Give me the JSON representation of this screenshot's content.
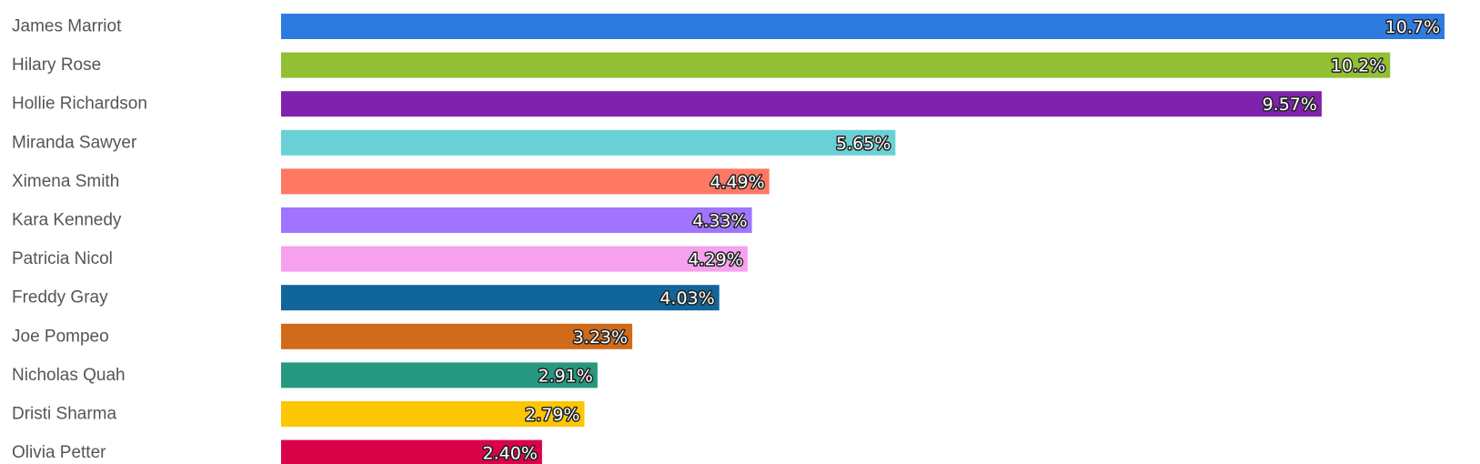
{
  "chart_data": {
    "type": "bar",
    "orientation": "horizontal",
    "title": "",
    "xlabel": "",
    "ylabel": "",
    "unit": "%",
    "xlim": [
      0,
      10.7
    ],
    "grid": false,
    "legend": "none",
    "categories": [
      "James Marriot",
      "Hilary Rose",
      "Hollie Richardson",
      "Miranda Sawyer",
      "Ximena Smith",
      "Kara Kennedy",
      "Patricia Nicol",
      "Freddy Gray",
      "Joe Pompeo",
      "Nicholas Quah",
      "Dristi Sharma",
      "Olivia Petter"
    ],
    "values": [
      10.7,
      10.2,
      9.57,
      5.65,
      4.49,
      4.33,
      4.29,
      4.03,
      3.23,
      2.91,
      2.79,
      2.4
    ],
    "data_labels": [
      "10.7%",
      "10.2%",
      "9.57%",
      "5.65%",
      "4.49%",
      "4.33%",
      "4.29%",
      "4.03%",
      "3.23%",
      "2.91%",
      "2.79%",
      "2.40%"
    ],
    "colors": [
      "#2e7be0",
      "#93bf33",
      "#7f22ac",
      "#69d1d6",
      "#ff7863",
      "#a074ff",
      "#f7a1ee",
      "#10669b",
      "#d16a19",
      "#26987f",
      "#fcc602",
      "#d90249"
    ]
  }
}
